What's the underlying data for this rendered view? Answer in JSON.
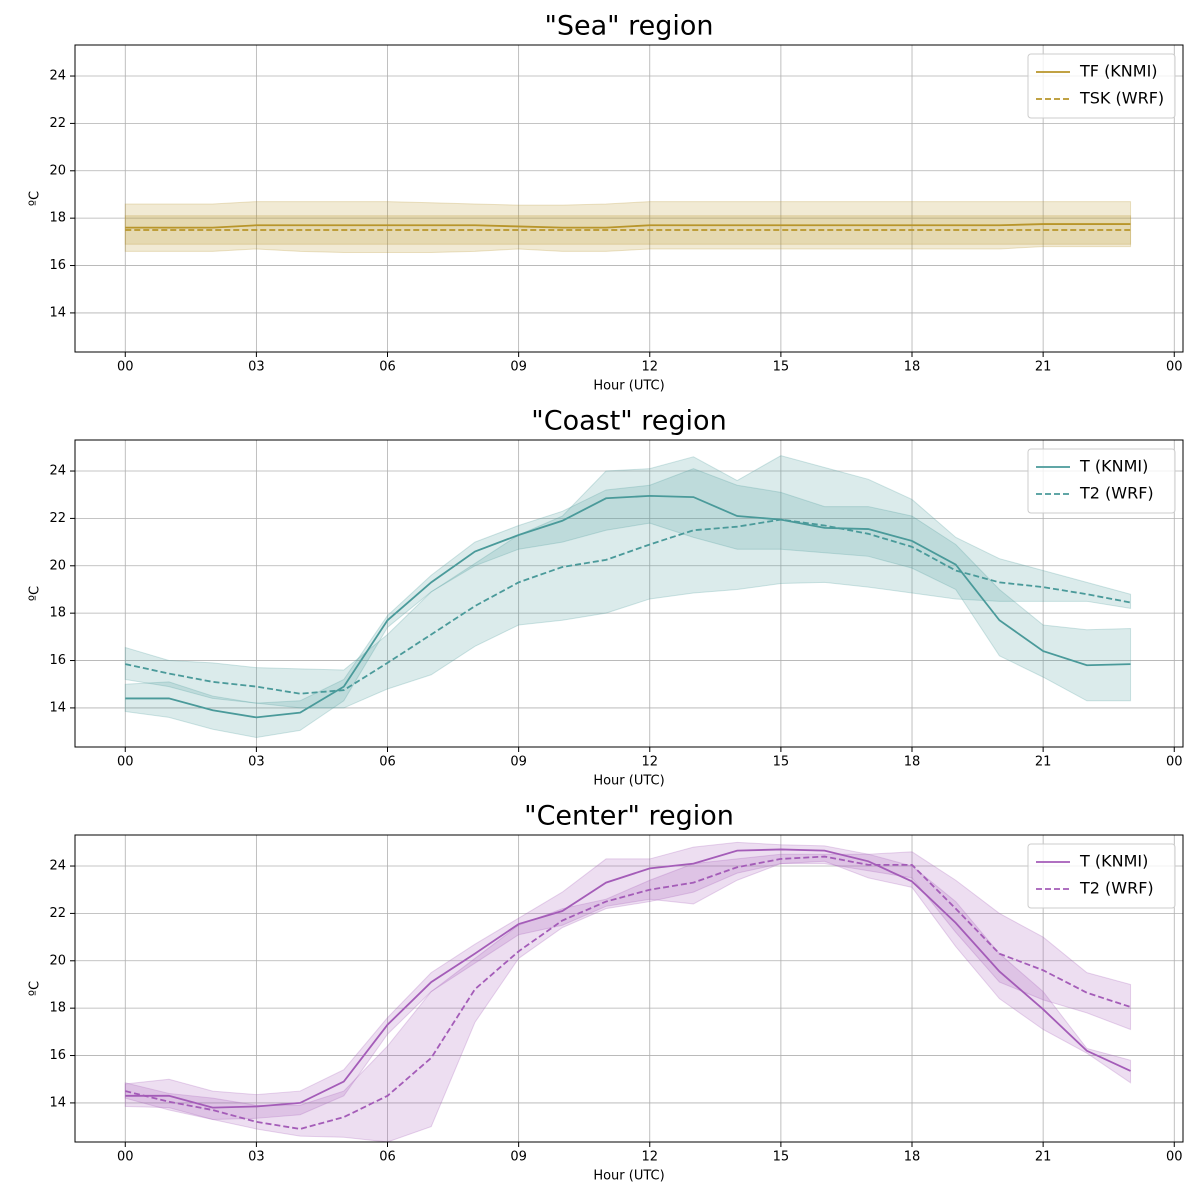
{
  "chart_data": [
    {
      "type": "line",
      "title": "\"Sea\" region",
      "xlabel": "Hour (UTC)",
      "ylabel": "ºC",
      "x": [
        0,
        1,
        2,
        3,
        4,
        5,
        6,
        7,
        8,
        9,
        10,
        11,
        12,
        13,
        14,
        15,
        16,
        17,
        18,
        19,
        20,
        21,
        22,
        23
      ],
      "xlim": [
        -1.15,
        24.2
      ],
      "ylim": [
        12.35,
        25.31
      ],
      "xticks": [
        {
          "value": 0,
          "label": "00"
        },
        {
          "value": 3,
          "label": "03"
        },
        {
          "value": 6,
          "label": "06"
        },
        {
          "value": 9,
          "label": "09"
        },
        12,
        15,
        18,
        21,
        {
          "value": 24,
          "label": "00"
        }
      ],
      "yticks": [
        14,
        16,
        18,
        20,
        22,
        24
      ],
      "grid": true,
      "legend": "upper right",
      "series": [
        {
          "name": "TF (KNMI)",
          "color": "#b8952a",
          "linestyle": "solid",
          "values": [
            17.6,
            17.6,
            17.6,
            17.7,
            17.7,
            17.7,
            17.7,
            17.7,
            17.7,
            17.65,
            17.6,
            17.6,
            17.7,
            17.7,
            17.7,
            17.7,
            17.7,
            17.7,
            17.7,
            17.7,
            17.7,
            17.75,
            17.75,
            17.75
          ],
          "lower": [
            16.6,
            16.6,
            16.6,
            16.7,
            16.6,
            16.55,
            16.55,
            16.55,
            16.6,
            16.7,
            16.6,
            16.6,
            16.7,
            16.7,
            16.7,
            16.7,
            16.7,
            16.7,
            16.7,
            16.7,
            16.7,
            16.8,
            16.8,
            16.8
          ],
          "upper": [
            18.6,
            18.6,
            18.6,
            18.7,
            18.7,
            18.7,
            18.7,
            18.65,
            18.6,
            18.55,
            18.55,
            18.6,
            18.7,
            18.7,
            18.7,
            18.7,
            18.7,
            18.7,
            18.7,
            18.7,
            18.7,
            18.7,
            18.7,
            18.7
          ]
        },
        {
          "name": "TSK (WRF)",
          "color": "#b8952a",
          "linestyle": "dashed",
          "values": [
            17.5,
            17.5,
            17.5,
            17.5,
            17.5,
            17.5,
            17.5,
            17.5,
            17.5,
            17.5,
            17.5,
            17.5,
            17.5,
            17.5,
            17.5,
            17.5,
            17.5,
            17.5,
            17.5,
            17.5,
            17.5,
            17.5,
            17.5,
            17.5
          ],
          "lower": [
            16.9,
            16.9,
            16.9,
            16.9,
            16.9,
            16.9,
            16.9,
            16.9,
            16.9,
            16.9,
            16.9,
            16.9,
            16.9,
            16.9,
            16.9,
            16.9,
            16.9,
            16.9,
            16.9,
            16.9,
            16.9,
            16.9,
            16.9,
            16.9
          ],
          "upper": [
            18.1,
            18.1,
            18.1,
            18.1,
            18.1,
            18.1,
            18.1,
            18.1,
            18.1,
            18.1,
            18.1,
            18.1,
            18.1,
            18.1,
            18.1,
            18.1,
            18.1,
            18.1,
            18.1,
            18.1,
            18.1,
            18.1,
            18.1,
            18.1
          ]
        }
      ]
    },
    {
      "type": "line",
      "title": "\"Coast\" region",
      "xlabel": "Hour (UTC)",
      "ylabel": "ºC",
      "x": [
        0,
        1,
        2,
        3,
        4,
        5,
        6,
        7,
        8,
        9,
        10,
        11,
        12,
        13,
        14,
        15,
        16,
        17,
        18,
        19,
        20,
        21,
        22,
        23
      ],
      "xlim": [
        -1.15,
        24.2
      ],
      "ylim": [
        12.35,
        25.31
      ],
      "xticks": [
        {
          "value": 0,
          "label": "00"
        },
        {
          "value": 3,
          "label": "03"
        },
        {
          "value": 6,
          "label": "06"
        },
        {
          "value": 9,
          "label": "09"
        },
        12,
        15,
        18,
        21,
        {
          "value": 24,
          "label": "00"
        }
      ],
      "yticks": [
        14,
        16,
        18,
        20,
        22,
        24
      ],
      "grid": true,
      "legend": "upper right",
      "series": [
        {
          "name": "T (KNMI)",
          "color": "#4a9a9a",
          "linestyle": "solid",
          "values": [
            14.4,
            14.4,
            13.9,
            13.6,
            13.8,
            14.9,
            17.7,
            19.3,
            20.6,
            21.3,
            21.9,
            22.85,
            22.95,
            22.9,
            22.1,
            21.95,
            21.6,
            21.55,
            21.05,
            20.05,
            17.7,
            16.4,
            15.8,
            15.85
          ],
          "lower": [
            13.85,
            13.6,
            13.1,
            12.75,
            13.05,
            14.3,
            17.4,
            18.9,
            20.0,
            20.7,
            21.0,
            21.5,
            21.8,
            21.2,
            20.7,
            20.7,
            20.55,
            20.4,
            19.9,
            19.0,
            16.2,
            15.3,
            14.3,
            14.3
          ],
          "upper": [
            15.0,
            15.1,
            14.5,
            14.2,
            14.3,
            15.2,
            17.9,
            19.6,
            21.0,
            21.7,
            22.3,
            23.2,
            23.4,
            24.1,
            23.4,
            23.1,
            22.5,
            22.5,
            22.1,
            20.9,
            19.0,
            17.5,
            17.3,
            17.35
          ]
        },
        {
          "name": "T2 (WRF)",
          "color": "#4a9a9a",
          "linestyle": "dashed",
          "values": [
            15.85,
            15.45,
            15.1,
            14.9,
            14.6,
            14.75,
            15.9,
            17.1,
            18.3,
            19.3,
            19.95,
            20.25,
            20.9,
            21.5,
            21.65,
            21.95,
            21.7,
            21.35,
            20.8,
            19.8,
            19.3,
            19.1,
            18.8,
            18.45
          ],
          "lower": [
            15.2,
            14.9,
            14.4,
            14.2,
            14.0,
            14.0,
            14.8,
            15.4,
            16.6,
            17.5,
            17.7,
            18.0,
            18.6,
            18.85,
            19.0,
            19.25,
            19.3,
            19.1,
            18.85,
            18.6,
            18.5,
            18.5,
            18.5,
            18.2
          ],
          "upper": [
            16.55,
            16.0,
            15.9,
            15.7,
            15.65,
            15.6,
            17.1,
            18.9,
            20.1,
            21.3,
            22.1,
            24.0,
            24.1,
            24.6,
            23.6,
            24.65,
            24.15,
            23.65,
            22.8,
            21.2,
            20.3,
            19.8,
            19.3,
            18.8
          ]
        }
      ]
    },
    {
      "type": "line",
      "title": "\"Center\" region",
      "xlabel": "Hour (UTC)",
      "ylabel": "ºC",
      "x": [
        0,
        1,
        2,
        3,
        4,
        5,
        6,
        7,
        8,
        9,
        10,
        11,
        12,
        13,
        14,
        15,
        16,
        17,
        18,
        19,
        20,
        21,
        22,
        23
      ],
      "xlim": [
        -1.15,
        24.2
      ],
      "ylim": [
        12.35,
        25.31
      ],
      "xticks": [
        {
          "value": 0,
          "label": "00"
        },
        {
          "value": 3,
          "label": "03"
        },
        {
          "value": 6,
          "label": "06"
        },
        {
          "value": 9,
          "label": "09"
        },
        12,
        15,
        18,
        21,
        {
          "value": 24,
          "label": "00"
        }
      ],
      "yticks": [
        14,
        16,
        18,
        20,
        22,
        24
      ],
      "grid": true,
      "legend": "upper right",
      "series": [
        {
          "name": "T (KNMI)",
          "color": "#a45cb8",
          "linestyle": "solid",
          "values": [
            14.3,
            14.3,
            13.8,
            13.85,
            14.0,
            14.9,
            17.3,
            19.1,
            20.3,
            21.55,
            22.1,
            23.3,
            23.9,
            24.1,
            24.65,
            24.7,
            24.65,
            24.2,
            23.35,
            21.6,
            19.55,
            17.95,
            16.2,
            15.35
          ],
          "lower": [
            13.85,
            13.8,
            13.3,
            13.35,
            13.5,
            14.3,
            16.9,
            18.7,
            19.9,
            21.1,
            21.5,
            22.3,
            22.6,
            22.4,
            23.4,
            24.1,
            24.2,
            23.5,
            23.1,
            20.6,
            18.4,
            17.1,
            16.1,
            14.85
          ],
          "upper": [
            14.8,
            15.0,
            14.5,
            14.35,
            14.5,
            15.4,
            17.6,
            19.5,
            20.7,
            21.8,
            22.9,
            24.3,
            24.3,
            24.8,
            25.0,
            24.9,
            24.85,
            24.5,
            24.0,
            22.5,
            20.3,
            18.7,
            16.3,
            15.8
          ]
        },
        {
          "name": "T2 (WRF)",
          "color": "#a45cb8",
          "linestyle": "dashed",
          "values": [
            14.5,
            14.05,
            13.7,
            13.2,
            12.9,
            13.4,
            14.3,
            15.9,
            18.8,
            20.4,
            21.7,
            22.5,
            23.0,
            23.3,
            23.95,
            24.3,
            24.4,
            24.05,
            24.05,
            22.2,
            20.3,
            19.6,
            18.65,
            18.05
          ],
          "lower": [
            14.2,
            13.7,
            13.3,
            12.9,
            12.6,
            12.55,
            12.35,
            13.0,
            17.4,
            20.1,
            21.4,
            22.2,
            22.5,
            22.9,
            23.7,
            24.1,
            24.1,
            23.8,
            23.5,
            21.2,
            19.1,
            18.35,
            17.8,
            17.1
          ],
          "upper": [
            14.85,
            14.4,
            14.2,
            13.9,
            13.9,
            14.5,
            16.4,
            18.7,
            20.1,
            21.5,
            22.2,
            22.6,
            23.4,
            24.1,
            24.3,
            24.5,
            24.5,
            24.5,
            24.6,
            23.4,
            22.0,
            21.0,
            19.5,
            19.0
          ]
        }
      ]
    }
  ]
}
